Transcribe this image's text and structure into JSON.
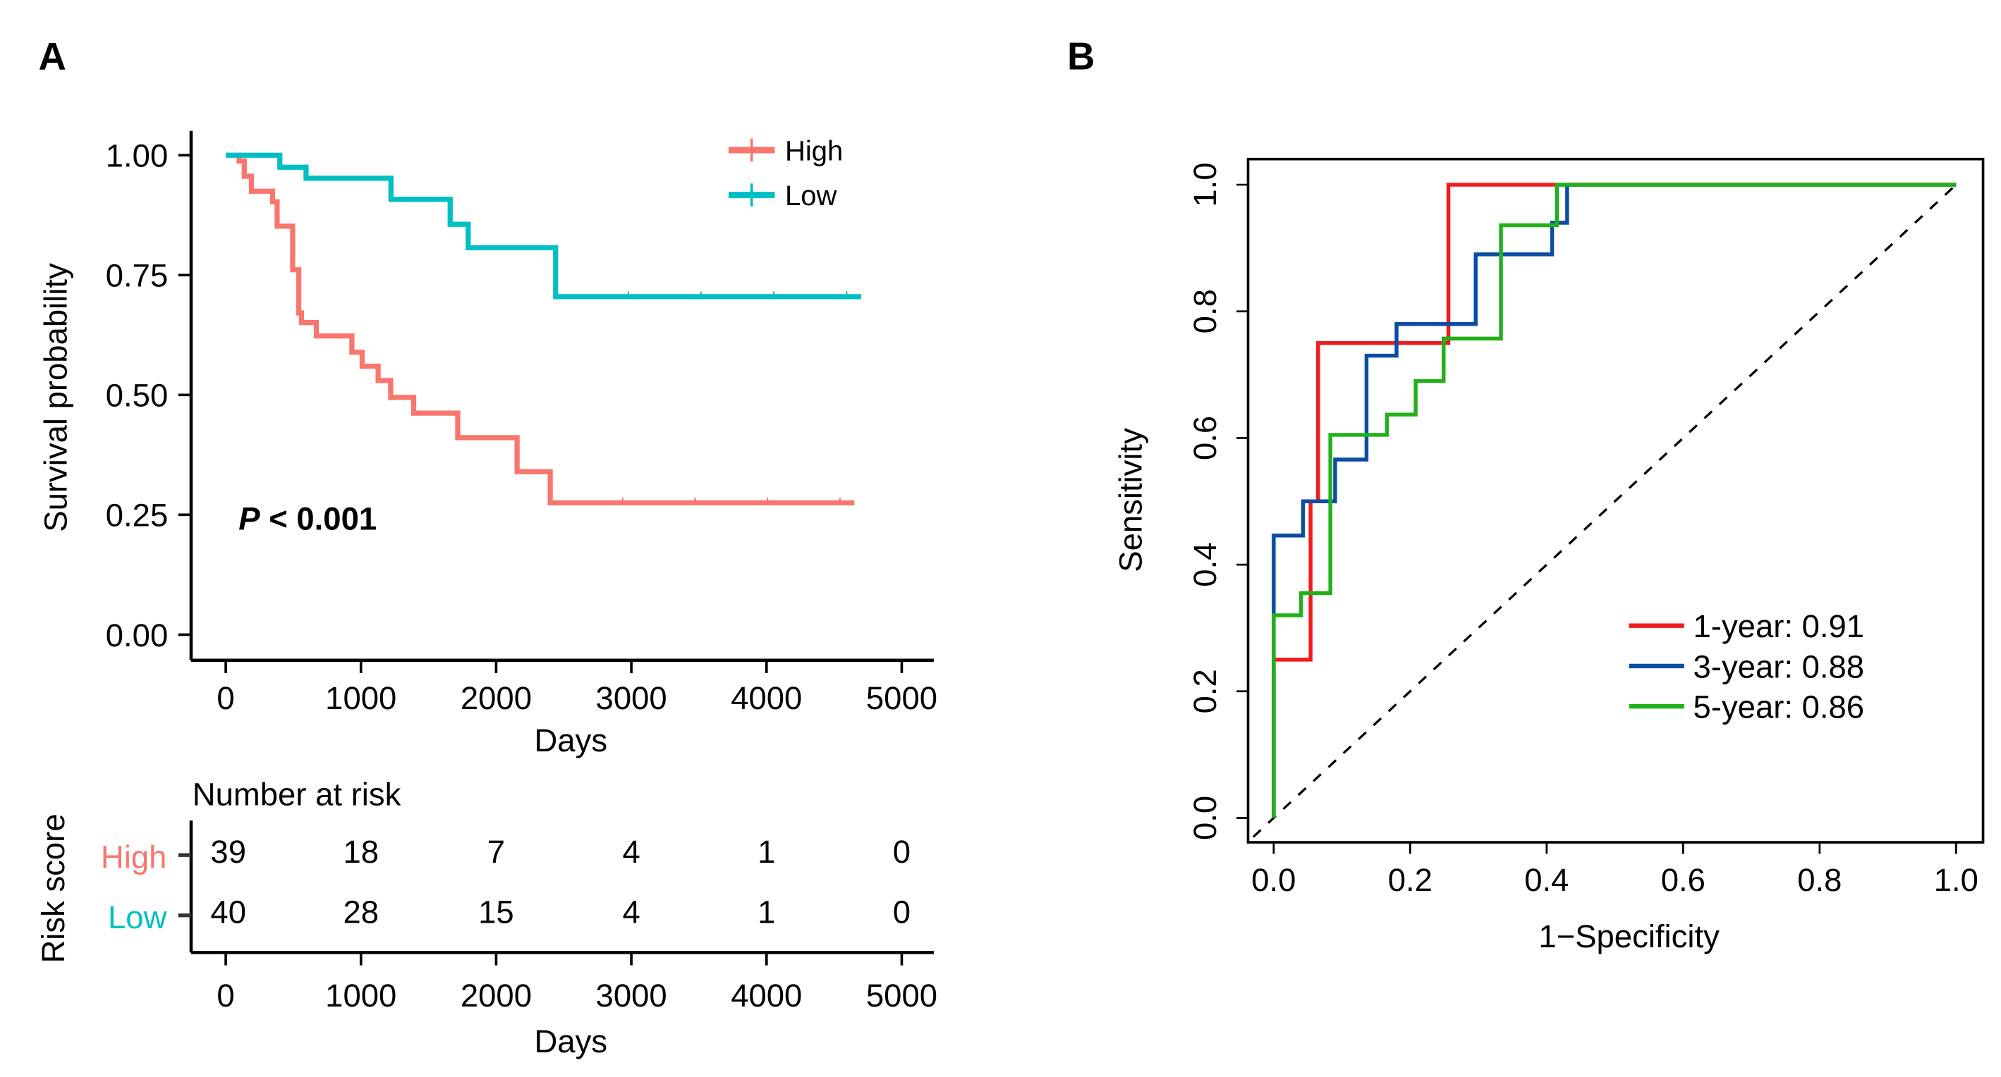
{
  "chart_data": [
    {
      "type": "line",
      "subtype": "kaplan-meier",
      "panel_label": "A",
      "xlabel": "Days",
      "ylabel": "Survival probability",
      "xlim": [
        0,
        5000
      ],
      "ylim": [
        0,
        1
      ],
      "x_ticks": [
        "0",
        "1000",
        "2000",
        "3000",
        "4000",
        "5000"
      ],
      "y_ticks": [
        "0.00",
        "0.25",
        "0.50",
        "0.75",
        "1.00"
      ],
      "annotation": {
        "p_label": "P",
        "p_text": " < 0.001"
      },
      "legend_position": "top-right",
      "series": [
        {
          "name": "High",
          "color": "#F8766D",
          "steps": [
            [
              0,
              1.0
            ],
            [
              99,
              0.988
            ],
            [
              137,
              0.956
            ],
            [
              190,
              0.925
            ],
            [
              346,
              0.903
            ],
            [
              380,
              0.852
            ],
            [
              495,
              0.761
            ],
            [
              540,
              0.671
            ],
            [
              560,
              0.651
            ],
            [
              670,
              0.623
            ],
            [
              933,
              0.589
            ],
            [
              1009,
              0.56
            ],
            [
              1127,
              0.53
            ],
            [
              1220,
              0.495
            ],
            [
              1390,
              0.462
            ],
            [
              1716,
              0.411
            ],
            [
              2155,
              0.34
            ],
            [
              2400,
              0.275
            ],
            [
              4650,
              0.275
            ]
          ]
        },
        {
          "name": "Low",
          "color": "#00BFC4",
          "steps": [
            [
              0,
              1.0
            ],
            [
              400,
              0.975
            ],
            [
              594,
              0.952
            ],
            [
              1222,
              0.908
            ],
            [
              1660,
              0.856
            ],
            [
              1793,
              0.807
            ],
            [
              2440,
              0.705
            ],
            [
              4700,
              0.705
            ]
          ]
        }
      ],
      "risk_table": {
        "title": "Number at risk",
        "ylabel": "Risk score",
        "xlabel": "Days",
        "times": [
          0,
          1000,
          2000,
          3000,
          4000,
          5000
        ],
        "rows": [
          {
            "name": "High",
            "color": "#F8766D",
            "values": [
              "39",
              "18",
              "7",
              "4",
              "1",
              "0"
            ]
          },
          {
            "name": "Low",
            "color": "#00BFC4",
            "values": [
              "40",
              "28",
              "15",
              "4",
              "1",
              "0"
            ]
          }
        ]
      }
    },
    {
      "type": "line",
      "subtype": "roc",
      "panel_label": "B",
      "xlabel": "1−Specificity",
      "ylabel": "Sensitivity",
      "xlim": [
        0,
        1
      ],
      "ylim": [
        0,
        1
      ],
      "x_ticks": [
        "0.0",
        "0.2",
        "0.4",
        "0.6",
        "0.8",
        "1.0"
      ],
      "y_ticks": [
        "0.0",
        "0.2",
        "0.4",
        "0.6",
        "0.8",
        "1.0"
      ],
      "legend_position": "bottom-right",
      "reference_line": "diagonal dashed",
      "series": [
        {
          "name": "1-year: 0.91",
          "auc": 0.91,
          "color": "#F21B1B",
          "points": [
            [
              0,
              0
            ],
            [
              0,
              0.25
            ],
            [
              0.054,
              0.25
            ],
            [
              0.054,
              0.5
            ],
            [
              0.065,
              0.5
            ],
            [
              0.065,
              0.75
            ],
            [
              0.256,
              0.75
            ],
            [
              0.256,
              1.0
            ],
            [
              1,
              1
            ]
          ]
        },
        {
          "name": "3-year: 0.88",
          "auc": 0.88,
          "color": "#0B4DA2",
          "points": [
            [
              0,
              0
            ],
            [
              0,
              0.446
            ],
            [
              0.043,
              0.446
            ],
            [
              0.043,
              0.5
            ],
            [
              0.09,
              0.5
            ],
            [
              0.09,
              0.566
            ],
            [
              0.136,
              0.566
            ],
            [
              0.136,
              0.73
            ],
            [
              0.18,
              0.73
            ],
            [
              0.18,
              0.78
            ],
            [
              0.296,
              0.78
            ],
            [
              0.296,
              0.89
            ],
            [
              0.408,
              0.89
            ],
            [
              0.408,
              0.94
            ],
            [
              0.43,
              0.94
            ],
            [
              0.43,
              1.0
            ],
            [
              1,
              1
            ]
          ]
        },
        {
          "name": "5-year: 0.86",
          "auc": 0.86,
          "color": "#22B01A",
          "points": [
            [
              0,
              0
            ],
            [
              0,
              0.32
            ],
            [
              0.04,
              0.32
            ],
            [
              0.04,
              0.355
            ],
            [
              0.083,
              0.355
            ],
            [
              0.083,
              0.605
            ],
            [
              0.166,
              0.605
            ],
            [
              0.166,
              0.637
            ],
            [
              0.208,
              0.637
            ],
            [
              0.208,
              0.69
            ],
            [
              0.249,
              0.69
            ],
            [
              0.249,
              0.757
            ],
            [
              0.333,
              0.757
            ],
            [
              0.333,
              0.936
            ],
            [
              0.415,
              0.936
            ],
            [
              0.415,
              1.0
            ],
            [
              1,
              1
            ]
          ]
        }
      ]
    }
  ]
}
